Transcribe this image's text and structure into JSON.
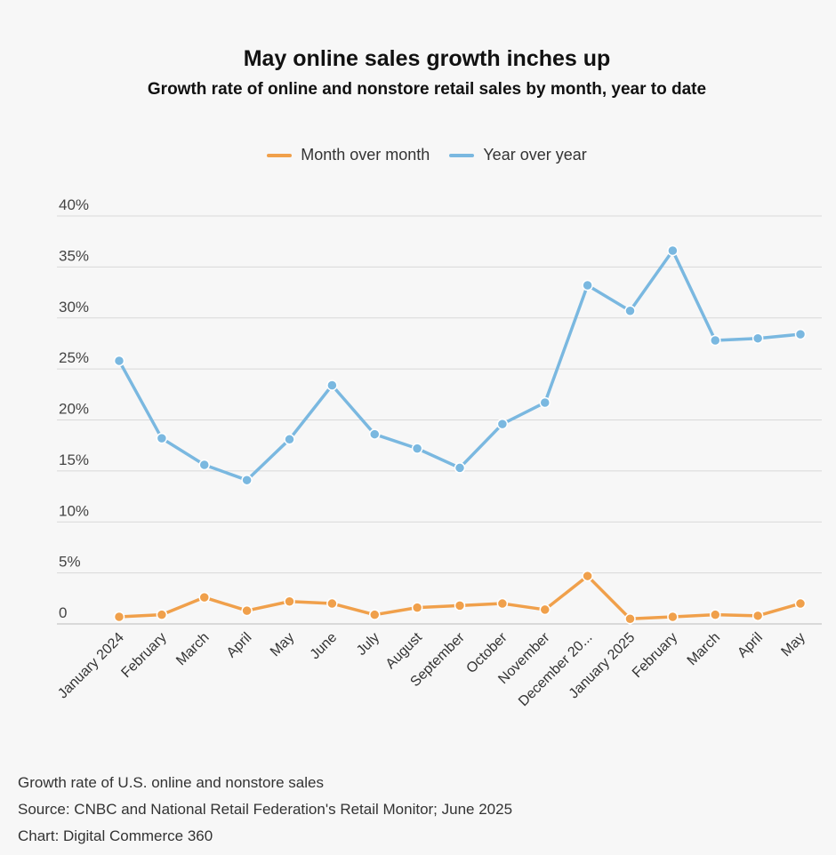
{
  "chart_data": {
    "type": "line",
    "title": "May online sales growth inches up",
    "subtitle": "Growth rate of online and nonstore retail sales by month, year to date",
    "categories": [
      "January 2024",
      "February",
      "March",
      "April",
      "May",
      "June",
      "July",
      "August",
      "September",
      "October",
      "November",
      "December 20...",
      "January 2025",
      "February",
      "March",
      "April",
      "May"
    ],
    "series": [
      {
        "name": "Month over month",
        "color": "#f0a04b",
        "values": [
          0.7,
          0.9,
          2.6,
          1.3,
          2.2,
          2.0,
          0.9,
          1.6,
          1.8,
          2.0,
          1.4,
          4.7,
          0.5,
          0.7,
          0.9,
          0.8,
          2.0
        ]
      },
      {
        "name": "Year over year",
        "color": "#7ab8e0",
        "values": [
          25.8,
          18.2,
          15.6,
          14.1,
          18.1,
          23.4,
          18.6,
          17.2,
          15.3,
          19.6,
          21.7,
          33.2,
          30.7,
          36.6,
          27.8,
          28.0,
          28.4
        ]
      }
    ],
    "ylim": [
      0,
      40
    ],
    "yticks": [
      0,
      5,
      10,
      15,
      20,
      25,
      30,
      35,
      40
    ],
    "ytick_labels": [
      "0",
      "5%",
      "10%",
      "15%",
      "20%",
      "25%",
      "30%",
      "35%",
      "40%"
    ],
    "legend_position": "top-center",
    "grid": true
  },
  "footer": {
    "note": "Growth rate of U.S. online and nonstore sales",
    "source": "Source: CNBC and National Retail Federation's Retail Monitor; June 2025",
    "credit": "Chart: Digital Commerce 360"
  }
}
